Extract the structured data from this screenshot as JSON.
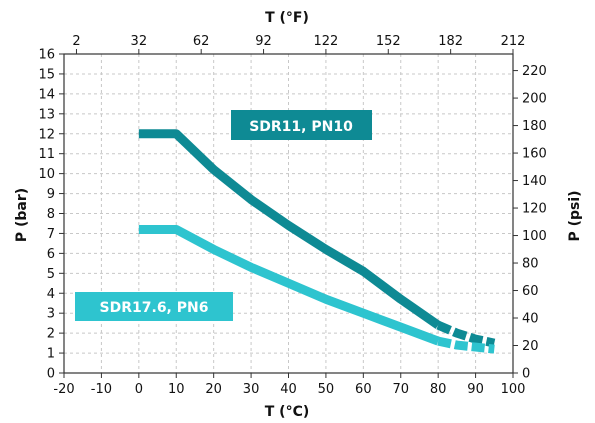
{
  "chart_data": {
    "type": "line",
    "title": "",
    "xlabel": "T (°C)",
    "ylabel": "P (bar)",
    "x2label": "T (°F)",
    "y2label": "P (psi)",
    "xlim": [
      -20,
      100
    ],
    "ylim": [
      0,
      16
    ],
    "x_ticks": [
      "-20",
      "-10",
      "0",
      "10",
      "20",
      "30",
      "40",
      "50",
      "60",
      "70",
      "80",
      "90",
      "100"
    ],
    "y_ticks": [
      "0",
      "1",
      "2",
      "3",
      "4",
      "5",
      "6",
      "7",
      "8",
      "9",
      "10",
      "11",
      "12",
      "13",
      "14",
      "15",
      "16"
    ],
    "x2_ticks": [
      "2",
      "32",
      "62",
      "92",
      "122",
      "152",
      "182",
      "212"
    ],
    "y2_ticks": [
      "0",
      "20",
      "40",
      "60",
      "80",
      "100",
      "120",
      "140",
      "160",
      "180",
      "200",
      "220"
    ],
    "grid": true,
    "series": [
      {
        "name": "SDR11, PN10",
        "color": "#0e8a94",
        "x": [
          0,
          10,
          20,
          30,
          40,
          50,
          60,
          70,
          80
        ],
        "y": [
          12,
          12,
          10.2,
          8.7,
          7.4,
          6.2,
          5.1,
          3.7,
          2.4
        ],
        "dashed_x": [
          80,
          85,
          90,
          95
        ],
        "dashed_y": [
          2.4,
          2.0,
          1.7,
          1.5
        ]
      },
      {
        "name": "SDR17.6, PN6",
        "color": "#2ec4cf",
        "x": [
          0,
          10,
          20,
          30,
          40,
          50,
          60,
          70,
          80
        ],
        "y": [
          7.2,
          7.2,
          6.2,
          5.3,
          4.5,
          3.7,
          3.0,
          2.3,
          1.6
        ],
        "dashed_x": [
          80,
          85,
          90,
          95
        ],
        "dashed_y": [
          1.6,
          1.4,
          1.3,
          1.2
        ]
      }
    ]
  }
}
